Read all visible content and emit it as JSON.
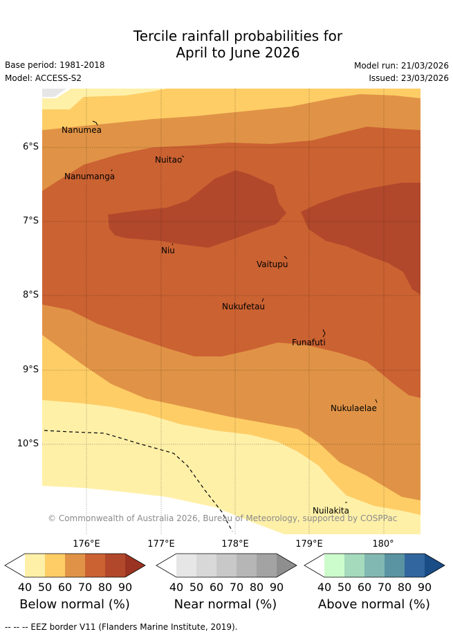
{
  "title_line1": "Tercile rainfall probabilities for",
  "title_line2": "April to June 2026",
  "base_period": "Base period: 1981-2018",
  "model": "Model: ACCESS-S2",
  "model_run": "Model run: 21/03/2026",
  "issued": "Issued: 23/03/2026",
  "latitudes": [
    "6°S",
    "7°S",
    "8°S",
    "9°S",
    "10°S"
  ],
  "longitudes": [
    "176°E",
    "177°E",
    "178°E",
    "179°E",
    "180°"
  ],
  "places": [
    "Nanumea",
    "Nuitao",
    "Nanumanga",
    "Niu",
    "Vaitupu",
    "Nukufetau",
    "Funafuti",
    "Nukulaelae",
    "Nuilakita"
  ],
  "credit": "© Commonwealth of Australia 2026, Bureau of Meteorology, supported by COSPPac",
  "colorbars": [
    {
      "title": "Below normal (%)",
      "ticks": [
        "40",
        "50",
        "60",
        "70",
        "80",
        "90"
      ],
      "colors": [
        "#fff0a8",
        "#fecd66",
        "#e09346",
        "#cb6232",
        "#b1482b",
        "#9a3322"
      ]
    },
    {
      "title": "Near normal (%)",
      "ticks": [
        "40",
        "50",
        "60",
        "70",
        "80",
        "90"
      ],
      "colors": [
        "#e6e6e6",
        "#d8d8d8",
        "#c8c8c8",
        "#b6b6b6",
        "#a3a3a3",
        "#8e8e8e"
      ]
    },
    {
      "title": "Above normal (%)",
      "ticks": [
        "40",
        "50",
        "60",
        "70",
        "80",
        "90"
      ],
      "colors": [
        "#ccfccc",
        "#a5dabd",
        "#82b8b2",
        "#5a93a1",
        "#32669e",
        "#1a4c86"
      ]
    }
  ],
  "footer": "--  --  -- EEZ border V11 (Flanders Marine Institute, 2019)."
}
